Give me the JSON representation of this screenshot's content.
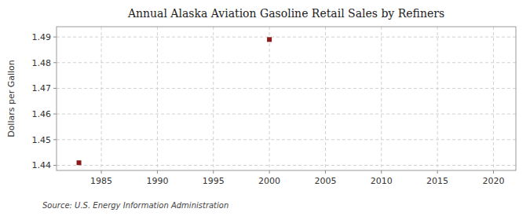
{
  "chart_data": {
    "type": "scatter",
    "title": "Annual Alaska Aviation Gasoline Retail Sales by Refiners",
    "y_label": "Dollars per Gallon",
    "annotation": "Source: U.S. Energy Information Administration",
    "x": [
      1983,
      2000
    ],
    "values": [
      1.441,
      1.489
    ],
    "color": "#8B1A1A",
    "marker": "square",
    "xlim": [
      1981,
      2022
    ],
    "ylim": [
      1.438,
      1.494
    ],
    "xticks": [
      1985,
      1990,
      1995,
      2000,
      2005,
      2010,
      2015,
      2020
    ],
    "yticks": [
      1.44,
      1.45,
      1.46,
      1.47,
      1.48,
      1.49
    ],
    "grid": true
  }
}
